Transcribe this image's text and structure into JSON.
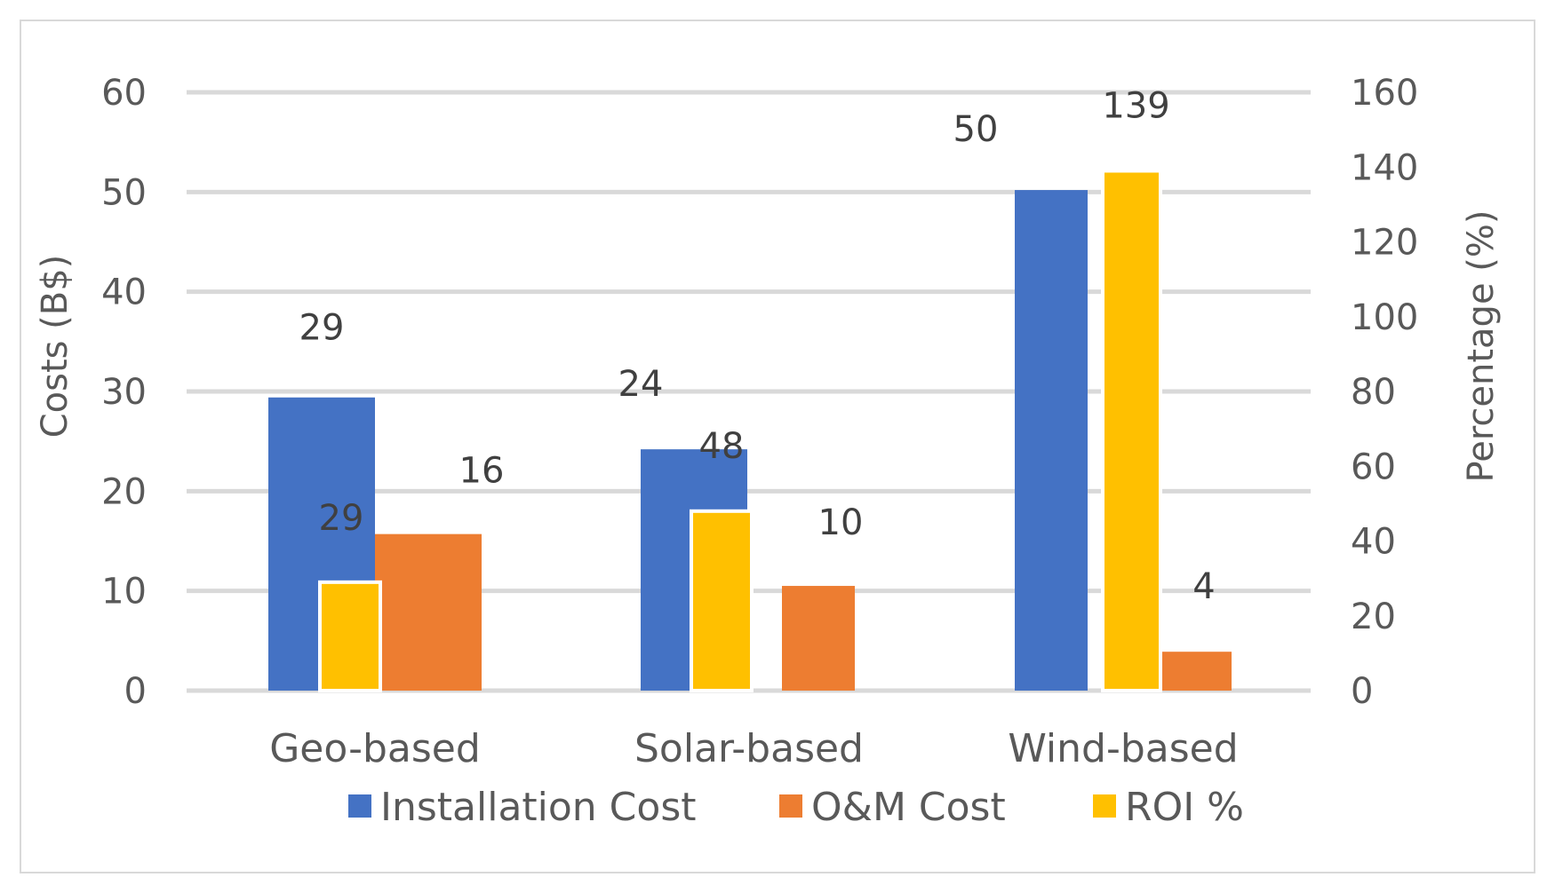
{
  "chart_data": {
    "type": "bar",
    "categories": [
      "Geo-based",
      "Solar-based",
      "Wind-based"
    ],
    "left_axis": {
      "label": "Costs (B$)",
      "min": 0,
      "max": 60,
      "ticks": [
        "0",
        "10",
        "20",
        "30",
        "40",
        "50",
        "60"
      ]
    },
    "right_axis": {
      "label": "Percentage (%)",
      "min": 0,
      "max": 160,
      "ticks": [
        "0",
        "20",
        "40",
        "60",
        "80",
        "100",
        "120",
        "140",
        "160"
      ]
    },
    "grid": true,
    "legend_position": "bottom",
    "series": [
      {
        "name": "Installation Cost",
        "axis": "left",
        "color": "#4472C4",
        "values": [
          29.4,
          24.2,
          50.2
        ],
        "labels": [
          "29",
          "24",
          "50"
        ]
      },
      {
        "name": "O&M Cost",
        "axis": "left",
        "color": "#ED7D31",
        "values": [
          15.7,
          10.5,
          3.9
        ],
        "labels": [
          "16",
          "10",
          "4"
        ]
      },
      {
        "name": "ROI %",
        "axis": "right",
        "color": "#FFC000",
        "values": [
          29,
          48,
          139
        ],
        "labels": [
          "29",
          "48",
          "139"
        ]
      }
    ]
  }
}
